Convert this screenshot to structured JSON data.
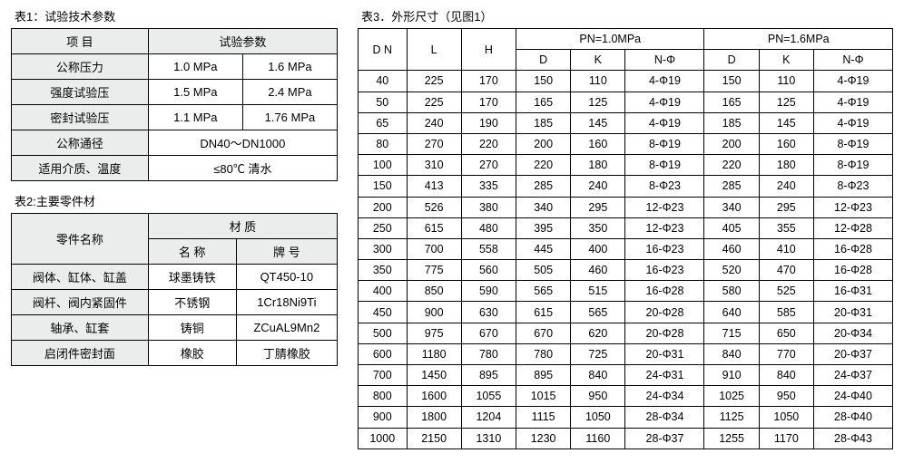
{
  "titles": {
    "t1": "表1：试验技术参数",
    "t2": "表2:主要零件材",
    "t3": "表3．外形尺寸（见图1）"
  },
  "table1": {
    "h_item": "项  目",
    "h_param": "试验参数",
    "r1_label": "公称压力",
    "r1_v1": "1.0 MPa",
    "r1_v2": "1.6 MPa",
    "r2_label": "强度试验压",
    "r2_v1": "1.5 MPa",
    "r2_v2": "2.4 MPa",
    "r3_label": "密封试验压",
    "r3_v1": "1.1 MPa",
    "r3_v2": "1.76 MPa",
    "r4_label": "公称通径",
    "r4_v": "DN40～DN1000",
    "r5_label": "适用介质、温度",
    "r5_v": "≤80℃ 清水"
  },
  "table2": {
    "h_part": "零件名称",
    "h_material": "材    质",
    "h_name": "名  称",
    "h_grade": "牌  号",
    "r1_part": "阀体、缸体、缸盖",
    "r1_name": "球墨铸铁",
    "r1_grade": "QT450-10",
    "r2_part": "阀杆、阀内紧固件",
    "r2_name": "不锈钢",
    "r2_grade": "1Cr18Ni9Ti",
    "r3_part": "轴承、缸套",
    "r3_name": "铸铜",
    "r3_grade": "ZCuAL9Mn2",
    "r4_part": "启闭件密封面",
    "r4_name": "橡胶",
    "r4_grade": "丁腈橡胶"
  },
  "table3": {
    "h_dn": "D N",
    "h_l": "L",
    "h_h": "H",
    "h_pn10": "PN=1.0MPa",
    "h_pn16": "PN=1.6MPa",
    "h_d": "D",
    "h_k": "K",
    "h_nphi": "N-Φ",
    "rows": [
      {
        "dn": "40",
        "l": "225",
        "h": "170",
        "d1": "150",
        "k1": "110",
        "n1": "4-Φ19",
        "d2": "150",
        "k2": "110",
        "n2": "4-Φ19"
      },
      {
        "dn": "50",
        "l": "225",
        "h": "170",
        "d1": "165",
        "k1": "125",
        "n1": "4-Φ19",
        "d2": "165",
        "k2": "125",
        "n2": "4-Φ19"
      },
      {
        "dn": "65",
        "l": "240",
        "h": "190",
        "d1": "185",
        "k1": "145",
        "n1": "4-Φ19",
        "d2": "185",
        "k2": "145",
        "n2": "4-Φ19"
      },
      {
        "dn": "80",
        "l": "270",
        "h": "220",
        "d1": "200",
        "k1": "160",
        "n1": "8-Φ19",
        "d2": "200",
        "k2": "160",
        "n2": "8-Φ19"
      },
      {
        "dn": "100",
        "l": "310",
        "h": "270",
        "d1": "220",
        "k1": "180",
        "n1": "8-Φ19",
        "d2": "220",
        "k2": "180",
        "n2": "8-Φ19"
      },
      {
        "dn": "150",
        "l": "413",
        "h": "335",
        "d1": "285",
        "k1": "240",
        "n1": "8-Φ23",
        "d2": "285",
        "k2": "240",
        "n2": "8-Φ23"
      },
      {
        "dn": "200",
        "l": "526",
        "h": "380",
        "d1": "340",
        "k1": "295",
        "n1": "12-Φ23",
        "d2": "340",
        "k2": "295",
        "n2": "12-Φ23"
      },
      {
        "dn": "250",
        "l": "615",
        "h": "480",
        "d1": "395",
        "k1": "350",
        "n1": "12-Φ23",
        "d2": "405",
        "k2": "355",
        "n2": "12-Φ28"
      },
      {
        "dn": "300",
        "l": "700",
        "h": "558",
        "d1": "445",
        "k1": "400",
        "n1": "16-Φ23",
        "d2": "460",
        "k2": "410",
        "n2": "16-Φ28"
      },
      {
        "dn": "350",
        "l": "775",
        "h": "560",
        "d1": "505",
        "k1": "460",
        "n1": "16-Φ23",
        "d2": "520",
        "k2": "470",
        "n2": "16-Φ28"
      },
      {
        "dn": "400",
        "l": "850",
        "h": "590",
        "d1": "565",
        "k1": "515",
        "n1": "16-Φ28",
        "d2": "580",
        "k2": "525",
        "n2": "16-Φ31"
      },
      {
        "dn": "450",
        "l": "900",
        "h": "630",
        "d1": "615",
        "k1": "565",
        "n1": "20-Φ28",
        "d2": "640",
        "k2": "585",
        "n2": "20-Φ31"
      },
      {
        "dn": "500",
        "l": "975",
        "h": "670",
        "d1": "670",
        "k1": "620",
        "n1": "20-Φ28",
        "d2": "715",
        "k2": "650",
        "n2": "20-Φ34"
      },
      {
        "dn": "600",
        "l": "1180",
        "h": "780",
        "d1": "780",
        "k1": "725",
        "n1": "20-Φ31",
        "d2": "840",
        "k2": "770",
        "n2": "20-Φ37"
      },
      {
        "dn": "700",
        "l": "1450",
        "h": "895",
        "d1": "895",
        "k1": "840",
        "n1": "24-Φ31",
        "d2": "910",
        "k2": "840",
        "n2": "24-Φ37"
      },
      {
        "dn": "800",
        "l": "1600",
        "h": "1055",
        "d1": "1015",
        "k1": "950",
        "n1": "24-Φ34",
        "d2": "1025",
        "k2": "950",
        "n2": "24-Φ40"
      },
      {
        "dn": "900",
        "l": "1800",
        "h": "1204",
        "d1": "1115",
        "k1": "1050",
        "n1": "28-Φ34",
        "d2": "1125",
        "k2": "1050",
        "n2": "28-Φ40"
      },
      {
        "dn": "1000",
        "l": "2150",
        "h": "1310",
        "d1": "1230",
        "k1": "1160",
        "n1": "28-Φ37",
        "d2": "1255",
        "k2": "1170",
        "n2": "28-Φ43"
      }
    ]
  }
}
